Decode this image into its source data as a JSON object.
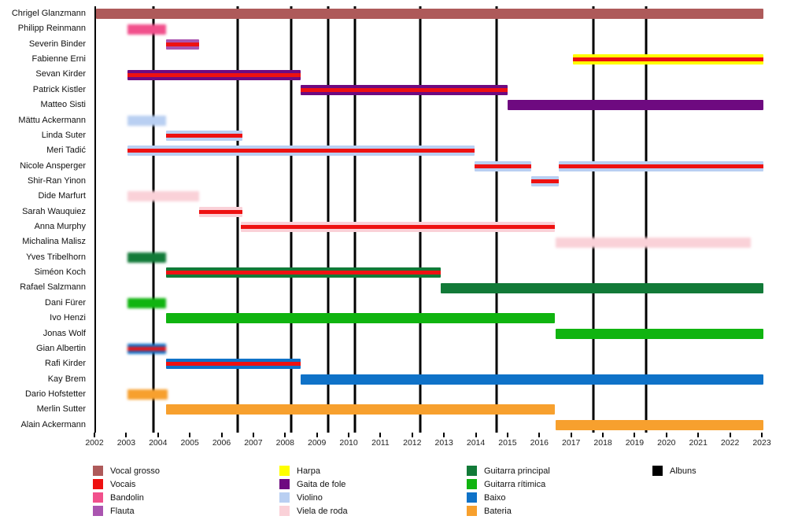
{
  "chart_data": {
    "type": "bar",
    "subtype": "timeline-gantt",
    "title": "",
    "x_axis": {
      "min": 2002,
      "max": 2023,
      "ticks": [
        "2002",
        "2003",
        "2004",
        "2005",
        "2006",
        "2007",
        "2008",
        "2009",
        "2010",
        "2011",
        "2012",
        "2013",
        "2014",
        "2015",
        "2016",
        "2017",
        "2018",
        "2019",
        "2020",
        "2021",
        "2022",
        "2023"
      ]
    },
    "album_lines": [
      2003.8,
      2006.45,
      2008.15,
      2009.3,
      2010.15,
      2012.2,
      2014.6,
      2017.65,
      2019.3
    ],
    "members": [
      {
        "name": "Chrigel Glanzmann",
        "instrument": "vocal_grosso",
        "stripe": false,
        "blur": false,
        "segments": [
          {
            "start": 2002.0,
            "end": 2023.0
          }
        ]
      },
      {
        "name": "Philipp Reinmann",
        "instrument": "bandolin",
        "stripe": false,
        "blur": true,
        "segments": [
          {
            "start": 2003.0,
            "end": 2004.2
          }
        ]
      },
      {
        "name": "Severin Binder",
        "instrument": "flauta",
        "stripe": true,
        "blur": false,
        "segments": [
          {
            "start": 2004.2,
            "end": 2005.25
          }
        ]
      },
      {
        "name": "Fabienne Erni",
        "instrument": "harpa",
        "stripe": true,
        "blur": false,
        "segments": [
          {
            "start": 2017.0,
            "end": 2023.0
          }
        ]
      },
      {
        "name": "Sevan Kirder",
        "instrument": "gaita_de_fole",
        "stripe": true,
        "blur": false,
        "segments": [
          {
            "start": 2003.0,
            "end": 2008.45
          }
        ]
      },
      {
        "name": "Patrick Kistler",
        "instrument": "gaita_de_fole",
        "stripe": true,
        "blur": false,
        "segments": [
          {
            "start": 2008.45,
            "end": 2014.95
          }
        ]
      },
      {
        "name": "Matteo Sisti",
        "instrument": "gaita_de_fole",
        "stripe": false,
        "blur": false,
        "segments": [
          {
            "start": 2014.95,
            "end": 2023.0
          }
        ]
      },
      {
        "name": "Mättu Ackermann",
        "instrument": "violino",
        "stripe": false,
        "blur": true,
        "segments": [
          {
            "start": 2003.0,
            "end": 2004.2
          }
        ]
      },
      {
        "name": "Linda Suter",
        "instrument": "violino",
        "stripe": true,
        "blur": false,
        "segments": [
          {
            "start": 2004.2,
            "end": 2006.6
          }
        ]
      },
      {
        "name": "Meri Tadić",
        "instrument": "violino",
        "stripe": true,
        "blur": false,
        "segments": [
          {
            "start": 2003.0,
            "end": 2013.9
          }
        ]
      },
      {
        "name": "Nicole Ansperger",
        "instrument": "violino",
        "stripe": true,
        "blur": false,
        "segments": [
          {
            "start": 2013.9,
            "end": 2015.7
          },
          {
            "start": 2016.55,
            "end": 2023.0
          }
        ]
      },
      {
        "name": "Shir-Ran Yinon",
        "instrument": "violino",
        "stripe": true,
        "blur": false,
        "segments": [
          {
            "start": 2015.7,
            "end": 2016.55
          }
        ]
      },
      {
        "name": "Dide Marfurt",
        "instrument": "viela_de_roda",
        "stripe": false,
        "blur": true,
        "segments": [
          {
            "start": 2003.0,
            "end": 2005.25
          }
        ]
      },
      {
        "name": "Sarah Wauquiez",
        "instrument": "viela_de_roda",
        "stripe": true,
        "blur": false,
        "segments": [
          {
            "start": 2005.25,
            "end": 2006.6
          }
        ]
      },
      {
        "name": "Anna Murphy",
        "instrument": "viela_de_roda",
        "stripe": true,
        "blur": false,
        "segments": [
          {
            "start": 2006.55,
            "end": 2016.45
          }
        ]
      },
      {
        "name": "Michalina Malisz",
        "instrument": "viela_de_roda",
        "stripe": false,
        "blur": true,
        "segments": [
          {
            "start": 2016.45,
            "end": 2022.6
          }
        ]
      },
      {
        "name": "Yves Tribelhorn",
        "instrument": "guitarra_principal",
        "stripe": false,
        "blur": true,
        "segments": [
          {
            "start": 2003.0,
            "end": 2004.2
          }
        ]
      },
      {
        "name": "Siméon Koch",
        "instrument": "guitarra_principal",
        "stripe": true,
        "blur": false,
        "segments": [
          {
            "start": 2004.2,
            "end": 2012.85
          }
        ]
      },
      {
        "name": "Rafael Salzmann",
        "instrument": "guitarra_principal",
        "stripe": false,
        "blur": false,
        "segments": [
          {
            "start": 2012.85,
            "end": 2023.0
          }
        ]
      },
      {
        "name": "Dani Fürer",
        "instrument": "guitarra_ritmica",
        "stripe": false,
        "blur": true,
        "segments": [
          {
            "start": 2003.0,
            "end": 2004.2
          }
        ]
      },
      {
        "name": "Ivo Henzi",
        "instrument": "guitarra_ritmica",
        "stripe": false,
        "blur": false,
        "segments": [
          {
            "start": 2004.2,
            "end": 2016.45
          }
        ]
      },
      {
        "name": "Jonas Wolf",
        "instrument": "guitarra_ritmica",
        "stripe": false,
        "blur": false,
        "segments": [
          {
            "start": 2016.45,
            "end": 2023.0
          }
        ]
      },
      {
        "name": "Gian Albertin",
        "instrument": "baixo",
        "stripe": true,
        "blur": true,
        "segments": [
          {
            "start": 2003.0,
            "end": 2004.2
          }
        ]
      },
      {
        "name": "Rafi Kirder",
        "instrument": "baixo",
        "stripe": true,
        "blur": false,
        "segments": [
          {
            "start": 2004.2,
            "end": 2008.45
          }
        ]
      },
      {
        "name": "Kay Brem",
        "instrument": "baixo",
        "stripe": false,
        "blur": false,
        "segments": [
          {
            "start": 2008.45,
            "end": 2023.0
          }
        ]
      },
      {
        "name": "Dario Hofstetter",
        "instrument": "bateria",
        "stripe": false,
        "blur": true,
        "segments": [
          {
            "start": 2003.0,
            "end": 2004.25
          }
        ]
      },
      {
        "name": "Merlin Sutter",
        "instrument": "bateria",
        "stripe": false,
        "blur": false,
        "segments": [
          {
            "start": 2004.2,
            "end": 2016.45
          }
        ]
      },
      {
        "name": "Alain Ackermann",
        "instrument": "bateria",
        "stripe": false,
        "blur": false,
        "segments": [
          {
            "start": 2016.45,
            "end": 2023.0
          }
        ]
      }
    ]
  },
  "colors": {
    "vocal_grosso": "#ae5a5a",
    "vocais": "#ee1111",
    "bandolin": "#f1508c",
    "flauta": "#aa55b0",
    "harpa": "#ffff00",
    "gaita_de_fole": "#6e0a80",
    "violino": "#b9cff2",
    "viela_de_roda": "#fad1d8",
    "guitarra_principal": "#127a38",
    "guitarra_ritmica": "#10b410",
    "baixo": "#0f72c8",
    "bateria": "#f7a02e",
    "albuns": "#000000"
  },
  "legend": {
    "columns": [
      {
        "items": [
          {
            "label": "Vocal grosso",
            "color": "vocal_grosso"
          },
          {
            "label": "Vocais",
            "color": "vocais"
          },
          {
            "label": "Bandolin",
            "color": "bandolin"
          },
          {
            "label": "Flauta",
            "color": "flauta"
          }
        ]
      },
      {
        "items": [
          {
            "label": "Harpa",
            "color": "harpa"
          },
          {
            "label": "Gaita de fole",
            "color": "gaita_de_fole"
          },
          {
            "label": "Violino",
            "color": "violino"
          },
          {
            "label": "Viela de roda",
            "color": "viela_de_roda"
          }
        ]
      },
      {
        "items": [
          {
            "label": "Guitarra principal",
            "color": "guitarra_principal"
          },
          {
            "label": "Guitarra rítimica",
            "color": "guitarra_ritmica"
          },
          {
            "label": "Baixo",
            "color": "baixo"
          },
          {
            "label": "Bateria",
            "color": "bateria"
          }
        ]
      },
      {
        "items": [
          {
            "label": "Albuns",
            "color": "albuns"
          }
        ]
      }
    ]
  }
}
